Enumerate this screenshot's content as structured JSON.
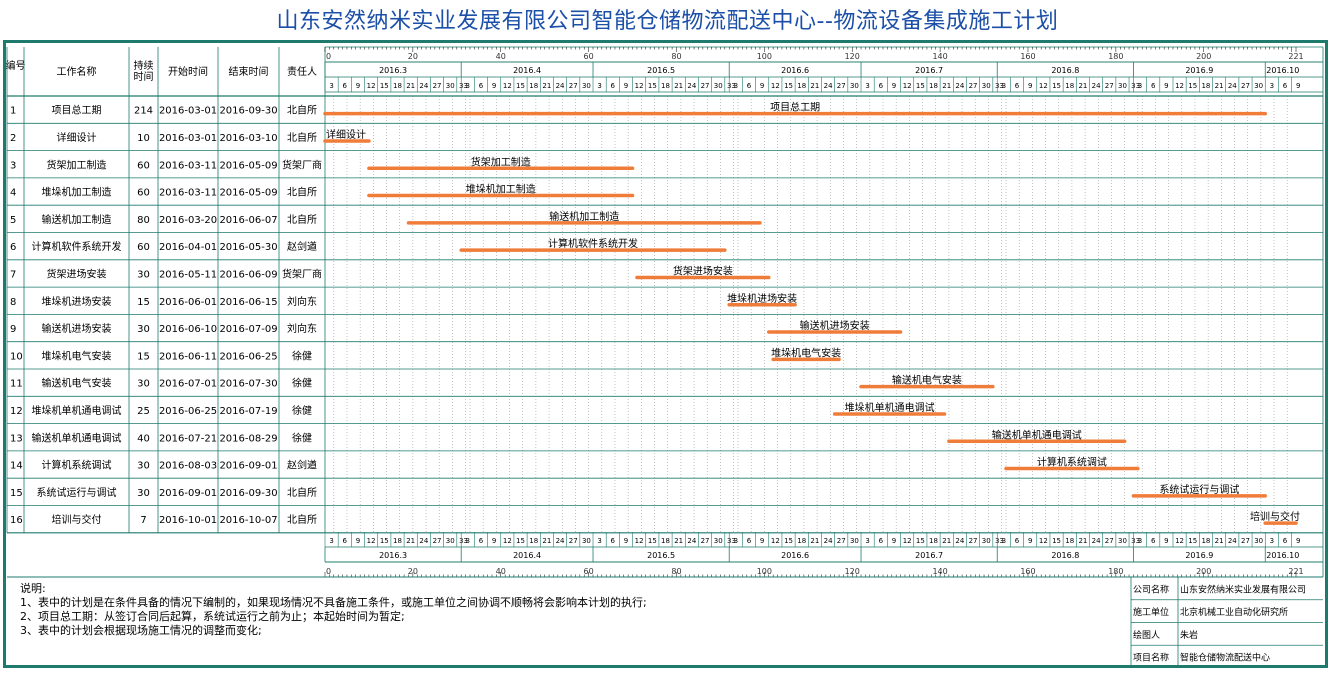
{
  "title": "山东安然纳米实业发展有限公司智能仓储物流配送中心--物流设备集成施工计划",
  "table_headers": {
    "id": "编号",
    "name": "工作名称",
    "duration": "持续时间",
    "start": "开始时间",
    "end": "结束时间",
    "owner": "责任人"
  },
  "chart_data": {
    "type": "gantt",
    "start_date": "2016-03-01",
    "day_axis": {
      "min": 0,
      "max": 221,
      "ticks": [
        0,
        20,
        40,
        60,
        80,
        100,
        120,
        140,
        160,
        180,
        200,
        221
      ]
    },
    "months": [
      {
        "label": "2016.3",
        "days": 31
      },
      {
        "label": "2016.4",
        "days": 30
      },
      {
        "label": "2016.5",
        "days": 31
      },
      {
        "label": "2016.6",
        "days": 30
      },
      {
        "label": "2016.7",
        "days": 31
      },
      {
        "label": "2016.8",
        "days": 31
      },
      {
        "label": "2016.9",
        "days": 30
      },
      {
        "label": "2016.10",
        "days": 8
      }
    ],
    "tasks": [
      {
        "id": "1",
        "name": "项目总工期",
        "duration": "214",
        "start": "2016-03-01",
        "end": "2016-09-30",
        "owner": "北自所"
      },
      {
        "id": "2",
        "name": "详细设计",
        "duration": "10",
        "start": "2016-03-01",
        "end": "2016-03-10",
        "owner": "北自所"
      },
      {
        "id": "3",
        "name": "货架加工制造",
        "duration": "60",
        "start": "2016-03-11",
        "end": "2016-05-09",
        "owner": "货架厂商"
      },
      {
        "id": "4",
        "name": "堆垛机加工制造",
        "duration": "60",
        "start": "2016-03-11",
        "end": "2016-05-09",
        "owner": "北自所"
      },
      {
        "id": "5",
        "name": "输送机加工制造",
        "duration": "80",
        "start": "2016-03-20",
        "end": "2016-06-07",
        "owner": "北自所"
      },
      {
        "id": "6",
        "name": "计算机软件系统开发",
        "duration": "60",
        "start": "2016-04-01",
        "end": "2016-05-30",
        "owner": "赵剑遒"
      },
      {
        "id": "7",
        "name": "货架进场安装",
        "duration": "30",
        "start": "2016-05-11",
        "end": "2016-06-09",
        "owner": "货架厂商"
      },
      {
        "id": "8",
        "name": "堆垛机进场安装",
        "duration": "15",
        "start": "2016-06-01",
        "end": "2016-06-15",
        "owner": "刘向东"
      },
      {
        "id": "9",
        "name": "输送机进场安装",
        "duration": "30",
        "start": "2016-06-10",
        "end": "2016-07-09",
        "owner": "刘向东"
      },
      {
        "id": "10",
        "name": "堆垛机电气安装",
        "duration": "15",
        "start": "2016-06-11",
        "end": "2016-06-25",
        "owner": "徐健"
      },
      {
        "id": "11",
        "name": "输送机电气安装",
        "duration": "30",
        "start": "2016-07-01",
        "end": "2016-07-30",
        "owner": "徐健"
      },
      {
        "id": "12",
        "name": "堆垛机单机通电调试",
        "duration": "25",
        "start": "2016-06-25",
        "end": "2016-07-19",
        "owner": "徐健"
      },
      {
        "id": "13",
        "name": "输送机单机通电调试",
        "duration": "40",
        "start": "2016-07-21",
        "end": "2016-08-29",
        "owner": "徐健"
      },
      {
        "id": "14",
        "name": "计算机系统调试",
        "duration": "30",
        "start": "2016-08-03",
        "end": "2016-09-01",
        "owner": "赵剑遒"
      },
      {
        "id": "15",
        "name": "系统试运行与调试",
        "duration": "30",
        "start": "2016-09-01",
        "end": "2016-09-30",
        "owner": "北自所"
      },
      {
        "id": "16",
        "name": "培训与交付",
        "duration": "7",
        "start": "2016-10-01",
        "end": "2016-10-07",
        "owner": "北自所"
      }
    ],
    "bar_color": "#f07c3a"
  },
  "notes": {
    "heading": "说明:",
    "lines": [
      "1、表中的计划是在条件具备的情况下编制的，如果现场情况不具备施工条件，或施工单位之间协调不顺畅将会影响本计划的执行;",
      "2、项目总工期：从签订合同后起算，系统试运行之前为止；本起始时间为暂定;",
      "3、表中的计划会根据现场施工情况的调整而变化;"
    ]
  },
  "info": [
    {
      "label": "公司名称",
      "value": "山东安然纳米实业发展有限公司"
    },
    {
      "label": "施工单位",
      "value": "北京机械工业自动化研究所"
    },
    {
      "label": "绘图人",
      "value": "朱岩"
    },
    {
      "label": "项目名称",
      "value": "智能仓储物流配送中心"
    }
  ],
  "colors": {
    "title": "#1b4fa8",
    "frame": "#1d7a6d",
    "bar": "#f07c3a"
  }
}
